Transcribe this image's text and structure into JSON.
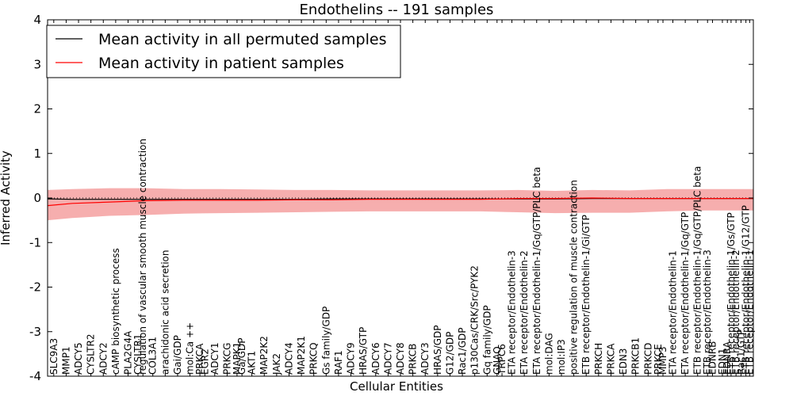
{
  "chart_data": {
    "type": "line",
    "title": "Endothelins -- 191 samples",
    "xlabel": "Cellular Entities",
    "ylabel": "Inferred Activity",
    "ylim": [
      -4,
      4
    ],
    "yticks": [
      -4,
      -3,
      -2,
      -1,
      0,
      1,
      2,
      3,
      4
    ],
    "legend": {
      "placement": "top-left",
      "entries": [
        {
          "label": "Mean activity in all permuted samples",
          "color": "#000000"
        },
        {
          "label": "Mean activity in patient samples",
          "color": "#ff0000"
        }
      ]
    },
    "band_color": "#f4a0a0",
    "categories": [
      "SLC9A3",
      "MMP1",
      "ADCY5",
      "CYSLTR2",
      "ADCY2",
      "cAMP biosynthetic process",
      "PLA2G4A",
      "CYSLTR1",
      "regulation of vascular smooth muscle contraction",
      "COL3A1",
      "arachidonic acid secretion",
      "Gai/GDP",
      "mol:Ca ++",
      "PRKCA",
      "EGR2",
      "ADCY1",
      "PRKCG",
      "MAPK1",
      "Ga/GDP",
      "AKT1",
      "MAP2K2",
      "JAK2",
      "ADCY4",
      "MAP2K1",
      "PRKCQ",
      "Gs family/GDP",
      "RAF1",
      "ADCY9",
      "HRAS/GTP",
      "ADCY6",
      "ADCY7",
      "ADCY8",
      "PRKCB",
      "ADCY3",
      "HRAS/GDP",
      "G12/GDP",
      "Rac1/GDP",
      "p130Cas/CRK/Src/PYK2",
      "Gq family/GDP",
      "GNAQ",
      "TRPC6",
      "ETA receptor/Endothelin-3",
      "ETA receptor/Endothelin-2",
      "ETA receptor/Endothelin-1/Gq/GTP/PLC beta",
      "mol:DAG",
      "mol:IP3",
      "positive regulation of muscle contraction",
      "ETB receptor/Endothelin-1/Gi/GTP",
      "PRKCH",
      "PRKCA",
      "EDN3",
      "PRKCB1",
      "PRKCD",
      "PRKCE",
      "MMP3",
      "ETA receptor/Endothelin-1",
      "ETA receptor/Endothelin-1/Gq/GTP",
      "ETB receptor/Endothelin-1/Gq/GTP/PLC beta",
      "ETB receptor/Endothelin-3",
      "EDNRB",
      "EDN1",
      "EDNRA",
      "ETB receptor/Endothelin-1/Gs/GTP",
      "ETB receptor/Endothelin-2",
      "Rac1/GTP",
      "ETB receptor/Endothelin-1/G12/GTP",
      "ETB receptor/Endothelin-1"
    ],
    "category_x": [
      0.5,
      1.5,
      2.5,
      3.5,
      4.5,
      5.5,
      6.5,
      7.3,
      7.7,
      8.5,
      9.5,
      10.5,
      11.5,
      12.3,
      12.7,
      13.5,
      14.5,
      15.3,
      15.7,
      16.5,
      17.5,
      18.5,
      19.5,
      20.5,
      21.5,
      22.5,
      23.5,
      24.5,
      25.5,
      26.5,
      27.5,
      28.5,
      29.5,
      30.5,
      31.5,
      32.5,
      33.5,
      34.5,
      35.5,
      36.3,
      36.7,
      37.5,
      38.5,
      39.5,
      40.5,
      41.5,
      42.5,
      43.5,
      44.5,
      45.5,
      46.5,
      47.5,
      48.5,
      49.3,
      49.7,
      50.5,
      51.5,
      52.5,
      53.3,
      53.7,
      54.5,
      54.9,
      55.2,
      55.6,
      56.0,
      56.4,
      56.7
    ],
    "x_extent": [
      0,
      57
    ],
    "series": [
      {
        "name": "Mean activity in all permuted samples",
        "color": "#000000",
        "x": [
          0,
          2,
          5,
          8,
          11,
          14,
          17,
          20,
          23,
          26,
          29,
          32,
          35,
          38,
          41,
          44,
          47,
          50,
          53,
          57
        ],
        "values": [
          -0.02,
          -0.03,
          -0.03,
          -0.03,
          -0.03,
          -0.03,
          -0.03,
          -0.03,
          -0.02,
          -0.02,
          -0.02,
          -0.02,
          -0.02,
          -0.02,
          -0.02,
          -0.01,
          -0.01,
          -0.01,
          -0.01,
          -0.01
        ]
      },
      {
        "name": "Mean activity in patient samples",
        "color": "#ff0000",
        "x": [
          0,
          2,
          5,
          8,
          11,
          14,
          17,
          20,
          23,
          26,
          29,
          32,
          35,
          38,
          41,
          44,
          47,
          50,
          53,
          57
        ],
        "values": [
          -0.17,
          -0.12,
          -0.09,
          -0.06,
          -0.05,
          -0.05,
          -0.05,
          -0.04,
          -0.04,
          -0.03,
          -0.03,
          -0.03,
          -0.03,
          -0.01,
          -0.01,
          0.0,
          -0.01,
          -0.01,
          -0.01,
          -0.01
        ],
        "lower": [
          -0.5,
          -0.45,
          -0.4,
          -0.38,
          -0.35,
          -0.34,
          -0.33,
          -0.32,
          -0.31,
          -0.3,
          -0.3,
          -0.3,
          -0.3,
          -0.32,
          -0.34,
          -0.33,
          -0.33,
          -0.3,
          -0.28,
          -0.28
        ],
        "upper": [
          0.18,
          0.2,
          0.22,
          0.22,
          0.2,
          0.2,
          0.19,
          0.18,
          0.18,
          0.17,
          0.17,
          0.17,
          0.17,
          0.18,
          0.16,
          0.18,
          0.17,
          0.2,
          0.2,
          0.2
        ]
      }
    ]
  }
}
